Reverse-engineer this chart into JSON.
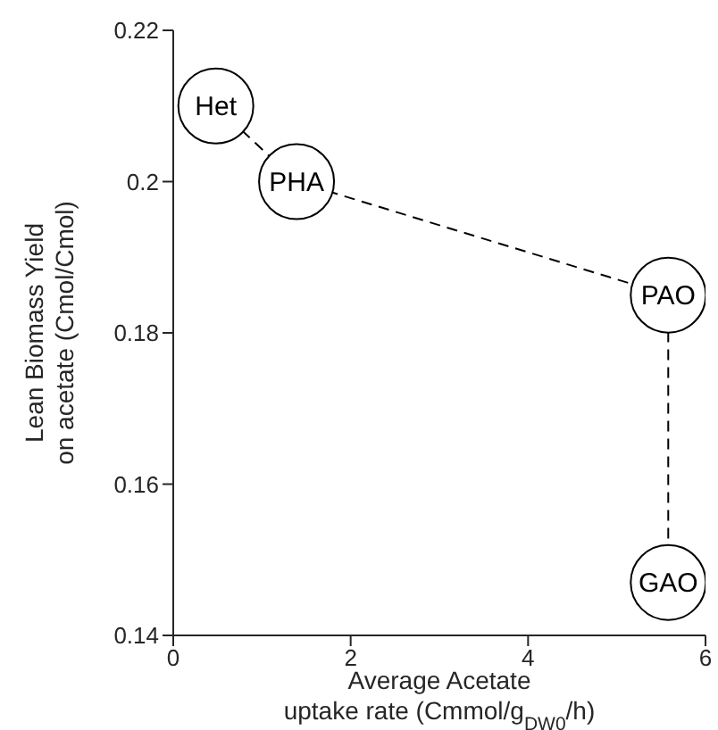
{
  "chart_data": {
    "type": "scatter",
    "xlabel": "Average Acetate\nuptake rate (Cmmol/g$_{DW0}$/h)",
    "ylabel": "Lean Biomass Yield\non acetate (Cmol/Cmol)",
    "series": [
      {
        "color": "#000000",
        "x": [
          0.48,
          1.39,
          5.58,
          5.58
        ],
        "values": [
          0.21,
          0.2,
          0.185,
          0.147
        ]
      }
    ],
    "line_style": "dashed",
    "marker": "circle",
    "grid": false,
    "xlim": [
      0,
      6
    ],
    "xticks": [
      0,
      2,
      4,
      6
    ],
    "ylim": [
      0.14,
      0.22
    ],
    "yticks": [
      0.14,
      0.16,
      0.18,
      0.2,
      0.22
    ],
    "annotations": [
      {
        "text": "Het",
        "x": 0.48,
        "y": 0.21
      },
      {
        "text": "PHA",
        "x": 1.39,
        "y": 0.2
      },
      {
        "text": "PAO",
        "x": 5.58,
        "y": 0.185
      },
      {
        "text": "GAO",
        "x": 5.58,
        "y": 0.147
      }
    ]
  }
}
